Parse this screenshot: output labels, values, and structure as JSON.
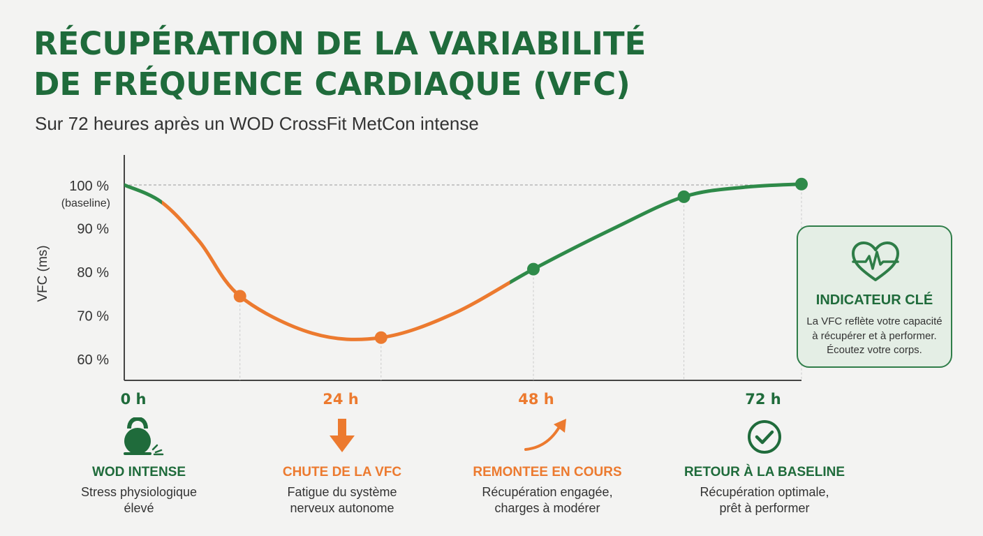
{
  "header": {
    "title_line1": "RÉCUPÉRATION DE LA VARIABILITÉ",
    "title_line2": "DE FRÉQUENCE CARDIAQUE (VFC)",
    "subtitle": "Sur 72 heures après un WOD CrossFit MetCon intense"
  },
  "colors": {
    "green": "#1f6b3b",
    "green_line": "#2e8a49",
    "orange": "#ec7a2f",
    "text": "#333333",
    "key_box_bg": "#e4eee5"
  },
  "chart_data": {
    "type": "line",
    "title": "RÉCUPÉRATION DE LA VARIABILITÉ DE FRÉQUENCE CARDIAQUE (VFC)",
    "subtitle": "Sur 72 heures après un WOD CrossFit MetCon intense",
    "ylabel": "VFC (ms)",
    "xlabel": "",
    "xlim": [
      0,
      72
    ],
    "ylim": [
      56,
      102
    ],
    "baseline_y": 100,
    "y_ticks": [
      {
        "value": 100,
        "label": "100 %",
        "sublabel": "(baseline)"
      },
      {
        "value": 90,
        "label": "90 %"
      },
      {
        "value": 80,
        "label": "80 %"
      },
      {
        "value": 70,
        "label": "70 %"
      },
      {
        "value": 60,
        "label": "60 %"
      }
    ],
    "x_ticks": [
      {
        "value": 0,
        "label": "0 h",
        "color": "green"
      },
      {
        "value": 24,
        "label": "24 h",
        "color": "orange"
      },
      {
        "value": 48,
        "label": "48 h",
        "color": "orange"
      },
      {
        "value": 72,
        "label": "72 h",
        "color": "green"
      }
    ],
    "series": [
      {
        "points": [
          {
            "x": 0,
            "y": 100
          },
          {
            "x": 4,
            "y": 96
          },
          {
            "x": 8,
            "y": 87
          },
          {
            "x": 12.3,
            "y": 74.5
          },
          {
            "x": 20,
            "y": 66
          },
          {
            "x": 27.3,
            "y": 65
          },
          {
            "x": 35,
            "y": 70.5
          },
          {
            "x": 43.5,
            "y": 80.7
          },
          {
            "x": 52,
            "y": 90
          },
          {
            "x": 59.5,
            "y": 97.3
          },
          {
            "x": 66,
            "y": 99.5
          },
          {
            "x": 72,
            "y": 100.2
          }
        ],
        "markers": [
          {
            "x": 12.3,
            "y": 74.5,
            "color": "orange"
          },
          {
            "x": 27.3,
            "y": 65,
            "color": "orange"
          },
          {
            "x": 43.5,
            "y": 80.7,
            "color": "green"
          },
          {
            "x": 59.5,
            "y": 97.3,
            "color": "green"
          },
          {
            "x": 72,
            "y": 100.2,
            "color": "green"
          }
        ],
        "segments": [
          {
            "from": 0,
            "to": 4,
            "color": "green"
          },
          {
            "from": 4,
            "to": 41,
            "color": "orange"
          },
          {
            "from": 41,
            "to": 72,
            "color": "green"
          }
        ]
      }
    ],
    "grid": false,
    "legend": "none"
  },
  "key_indicator": {
    "icon": "heart-pulse-icon",
    "title": "INDICATEUR CLÉ",
    "lines": [
      "La VFC reflète votre capacité",
      "à récupérer et à performer.",
      "Écoutez votre corps."
    ]
  },
  "steps": [
    {
      "icon": "kettlebell-icon",
      "color": "green",
      "title": "WOD INTENSE",
      "desc_lines": [
        "Stress physiologique",
        "élevé"
      ]
    },
    {
      "icon": "arrow-down-icon",
      "color": "orange",
      "title": "CHUTE DE LA VFC",
      "desc_lines": [
        "Fatigue du système",
        "nerveux autonome"
      ]
    },
    {
      "icon": "curved-arrow-up-icon",
      "color": "orange",
      "title": "REMONTEE EN COURS",
      "desc_lines": [
        "Récupération engagée,",
        "charges à modérer"
      ]
    },
    {
      "icon": "check-circle-icon",
      "color": "green",
      "title": "RETOUR À LA BASELINE",
      "desc_lines": [
        "Récupération optimale,",
        "prêt à performer"
      ]
    }
  ]
}
